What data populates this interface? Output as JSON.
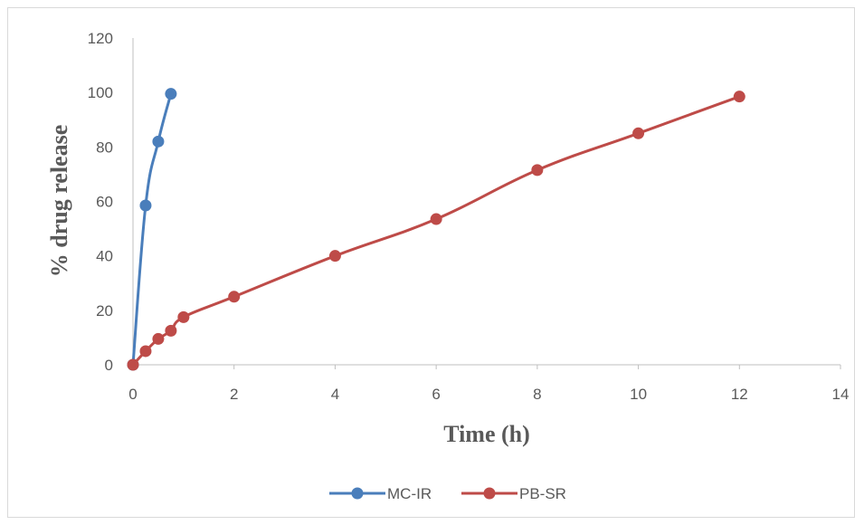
{
  "chart_data": {
    "type": "line",
    "xlabel": "Time (h)",
    "ylabel": "% drug release",
    "xlim": [
      0,
      14
    ],
    "ylim": [
      0,
      120
    ],
    "xticks": [
      "0",
      "2",
      "4",
      "6",
      "8",
      "10",
      "12",
      "14"
    ],
    "yticks": [
      "0",
      "20",
      "40",
      "60",
      "80",
      "100",
      "120"
    ],
    "grid": false,
    "legend_position": "bottom",
    "series": [
      {
        "name": "MC-IR",
        "color": "#4a7ebb",
        "x": [
          0,
          0.25,
          0.5,
          0.75
        ],
        "y": [
          0,
          58.5,
          82,
          99.5
        ]
      },
      {
        "name": "PB-SR",
        "color": "#be4b48",
        "x": [
          0,
          0.25,
          0.5,
          0.75,
          1,
          2,
          4,
          6,
          8,
          10,
          12
        ],
        "y": [
          0,
          5,
          9.5,
          12.5,
          17.5,
          25,
          40,
          53.5,
          71.5,
          85,
          98.5
        ]
      }
    ]
  }
}
